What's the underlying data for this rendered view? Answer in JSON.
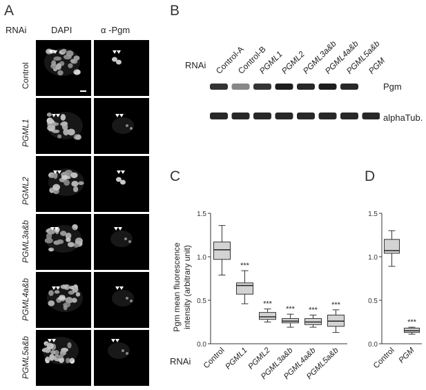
{
  "panelA": {
    "letter": "A",
    "rnai_label": "RNAi",
    "col_dapi": "DAPI",
    "col_pgm": "α -Pgm",
    "rows": [
      "Control",
      "PGML1",
      "PGML2",
      "PGML3a&b",
      "PGML4a&b",
      "PGML5a&b"
    ]
  },
  "panelB": {
    "letter": "B",
    "rnai_label": "RNAi",
    "lanes": [
      "Control-A",
      "Control-B",
      "PGML1",
      "PGML2",
      "PGML3a&b",
      "PGML4a&b",
      "PGML5a&b",
      "PGM"
    ],
    "band1_label": "Pgm",
    "band2_label": "alphaTub."
  },
  "panelC": {
    "letter": "C",
    "rnai_label": "RNAi",
    "ylabel_line1": "Pgm mean fluorescence",
    "ylabel_line2": "intensity (arbitrary unit)"
  },
  "panelD": {
    "letter": "D"
  },
  "chart_data": [
    {
      "type": "box",
      "panel": "C",
      "ylabel": "Pgm mean fluorescence intensity (arbitrary unit)",
      "xlabel": "RNAi",
      "ylim": [
        0,
        1.5
      ],
      "yticks": [
        "0.0",
        "0.5",
        "1.0",
        "1.5"
      ],
      "categories": [
        "Control",
        "PGML1",
        "PGML2",
        "PGML3a&b",
        "PGML4a&b",
        "PGML5a&b"
      ],
      "boxes": [
        {
          "min": 0.79,
          "q1": 0.97,
          "median": 1.08,
          "q3": 1.17,
          "max": 1.36,
          "sig": ""
        },
        {
          "min": 0.46,
          "q1": 0.57,
          "median": 0.67,
          "q3": 0.7,
          "max": 0.84,
          "sig": "***"
        },
        {
          "min": 0.25,
          "q1": 0.28,
          "median": 0.31,
          "q3": 0.36,
          "max": 0.4,
          "sig": "***"
        },
        {
          "min": 0.19,
          "q1": 0.24,
          "median": 0.26,
          "q3": 0.29,
          "max": 0.34,
          "sig": "***"
        },
        {
          "min": 0.19,
          "q1": 0.22,
          "median": 0.25,
          "q3": 0.29,
          "max": 0.33,
          "sig": "***"
        },
        {
          "min": 0.13,
          "q1": 0.2,
          "median": 0.26,
          "q3": 0.33,
          "max": 0.39,
          "sig": "***"
        }
      ]
    },
    {
      "type": "box",
      "panel": "D",
      "ylim": [
        0,
        1.5
      ],
      "yticks": [
        "0.0",
        "0.5",
        "1.0",
        "1.5"
      ],
      "categories": [
        "Control",
        "PGM"
      ],
      "boxes": [
        {
          "min": 0.89,
          "q1": 1.04,
          "median": 1.07,
          "q3": 1.2,
          "max": 1.3,
          "sig": ""
        },
        {
          "min": 0.11,
          "q1": 0.13,
          "median": 0.15,
          "q3": 0.18,
          "max": 0.19,
          "sig": "***"
        }
      ]
    }
  ]
}
